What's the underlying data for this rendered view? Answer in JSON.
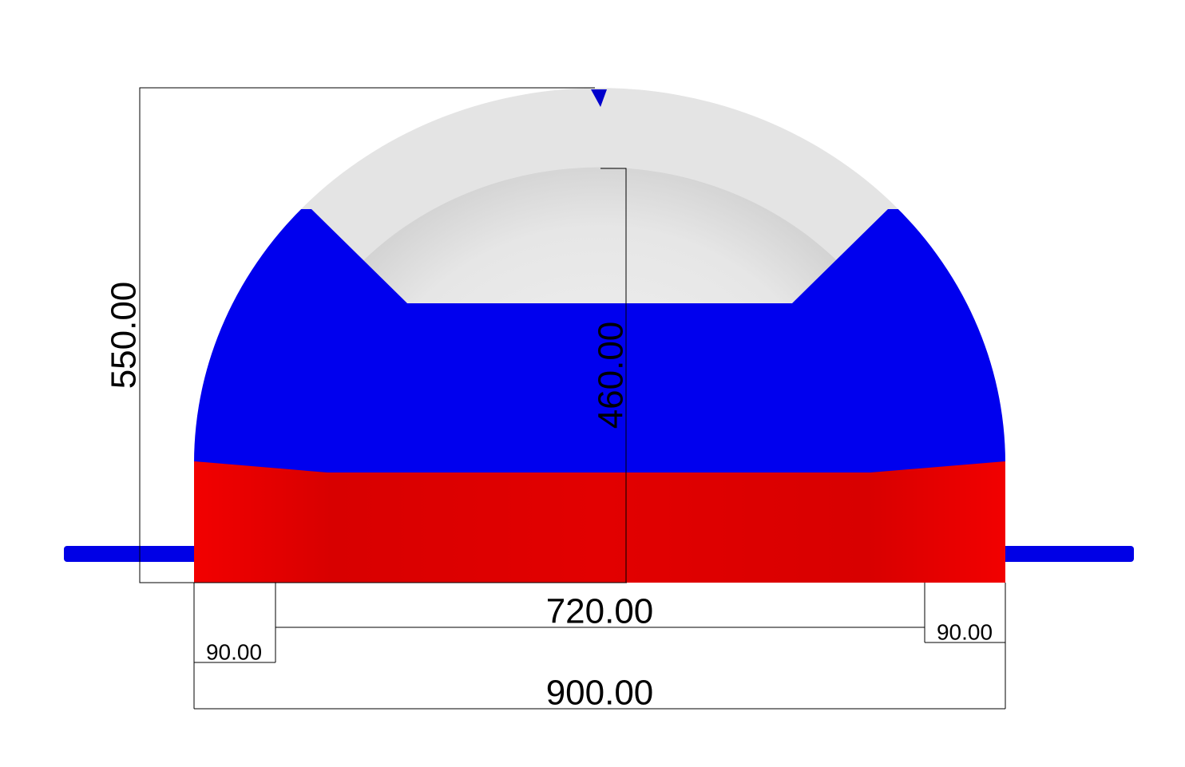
{
  "dimensions": {
    "height_outer": "550.00",
    "height_inner": "460.00",
    "width_inner": "720.00",
    "wall_left": "90.00",
    "wall_right": "90.00",
    "width_outer": "900.00"
  }
}
